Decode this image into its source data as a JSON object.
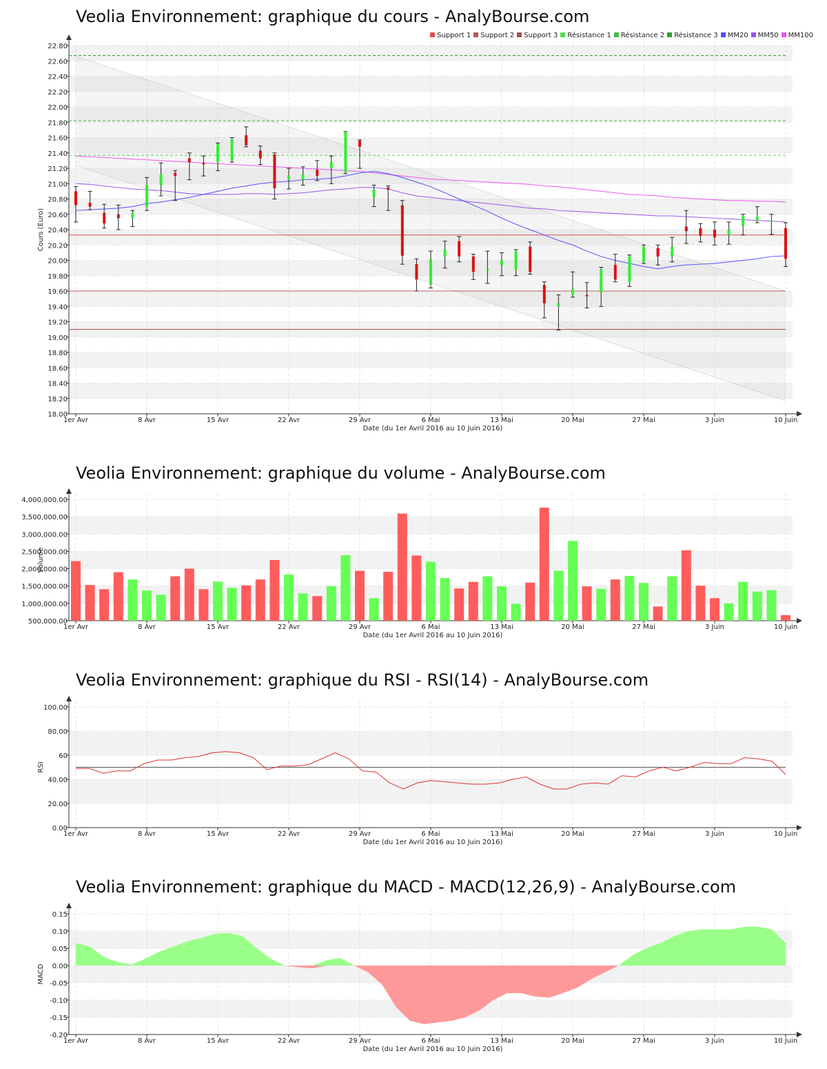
{
  "titles": {
    "price": "Veolia Environnement: graphique du cours - AnalyBourse.com",
    "volume": "Veolia Environnement: graphique du volume - AnalyBourse.com",
    "rsi": "Veolia Environnement: graphique du RSI - RSI(14) - AnalyBourse.com",
    "macd": "Veolia Environnement: graphique du MACD - MACD(12,26,9) - AnalyBourse.com"
  },
  "legend": [
    {
      "label": "Support 1",
      "color": "#e05050"
    },
    {
      "label": "Support 2",
      "color": "#b05a5a"
    },
    {
      "label": "Support 3",
      "color": "#a05050"
    },
    {
      "label": "Résistance 1",
      "color": "#55dd55"
    },
    {
      "label": "Résistance 2",
      "color": "#44bb44"
    },
    {
      "label": "Résistance 3",
      "color": "#339933"
    },
    {
      "label": "MM20",
      "color": "#5050ff"
    },
    {
      "label": "MM50",
      "color": "#9955ee"
    },
    {
      "label": "MM100",
      "color": "#ee55ee"
    }
  ],
  "x_axis": {
    "label": "Date (du 1er Avril 2016 au 10 Juin 2016)",
    "ticks": [
      {
        "index": 0,
        "label": "1er Avr"
      },
      {
        "index": 5,
        "label": "8 Avr"
      },
      {
        "index": 10,
        "label": "15 Avr"
      },
      {
        "index": 15,
        "label": "22 Avr"
      },
      {
        "index": 20,
        "label": "29 Avr"
      },
      {
        "index": 25,
        "label": "6 Mai"
      },
      {
        "index": 30,
        "label": "13 Mai"
      },
      {
        "index": 35,
        "label": "20 Mai"
      },
      {
        "index": 40,
        "label": "27 Mai"
      },
      {
        "index": 45,
        "label": "3 Juin"
      },
      {
        "index": 50,
        "label": "10 Juin"
      }
    ]
  },
  "chart_data": [
    {
      "type": "candlestick",
      "ylabel": "Cours (Euro)",
      "ylim": [
        18.0,
        22.8
      ],
      "yticks": [
        "18.00",
        "18.20",
        "18.40",
        "18.60",
        "18.80",
        "19.00",
        "19.20",
        "19.40",
        "19.60",
        "19.80",
        "20.00",
        "20.20",
        "20.40",
        "20.60",
        "20.80",
        "21.00",
        "21.20",
        "21.40",
        "21.60",
        "21.80",
        "22.00",
        "22.20",
        "22.40",
        "22.60",
        "22.80"
      ],
      "candles": [
        {
          "o": 20.9,
          "c": 20.72,
          "h": 20.96,
          "l": 20.5
        },
        {
          "o": 20.75,
          "c": 20.7,
          "h": 20.9,
          "l": 20.66
        },
        {
          "o": 20.62,
          "c": 20.48,
          "h": 20.73,
          "l": 20.42
        },
        {
          "o": 20.6,
          "c": 20.55,
          "h": 20.72,
          "l": 20.4
        },
        {
          "o": 20.55,
          "c": 20.62,
          "h": 20.65,
          "l": 20.44
        },
        {
          "o": 20.7,
          "c": 20.98,
          "h": 21.08,
          "l": 20.65
        },
        {
          "o": 20.98,
          "c": 21.12,
          "h": 21.27,
          "l": 20.84
        },
        {
          "o": 21.14,
          "c": 21.1,
          "h": 21.17,
          "l": 20.78
        },
        {
          "o": 21.33,
          "c": 21.28,
          "h": 21.4,
          "l": 21.05
        },
        {
          "o": 21.27,
          "c": 21.26,
          "h": 21.36,
          "l": 21.1
        },
        {
          "o": 21.28,
          "c": 21.52,
          "h": 21.53,
          "l": 21.17
        },
        {
          "o": 21.3,
          "c": 21.58,
          "h": 21.6,
          "l": 21.28
        },
        {
          "o": 21.63,
          "c": 21.5,
          "h": 21.74,
          "l": 21.48
        },
        {
          "o": 21.43,
          "c": 21.33,
          "h": 21.49,
          "l": 21.25
        },
        {
          "o": 21.38,
          "c": 20.94,
          "h": 21.4,
          "l": 20.8
        },
        {
          "o": 21.05,
          "c": 21.1,
          "h": 21.2,
          "l": 20.93
        },
        {
          "o": 21.05,
          "c": 21.12,
          "h": 21.22,
          "l": 20.98
        },
        {
          "o": 21.18,
          "c": 21.1,
          "h": 21.3,
          "l": 21.04
        },
        {
          "o": 21.2,
          "c": 21.28,
          "h": 21.36,
          "l": 21.0
        },
        {
          "o": 21.15,
          "c": 21.68,
          "h": 21.68,
          "l": 21.13
        },
        {
          "o": 21.56,
          "c": 21.48,
          "h": 21.57,
          "l": 21.2
        },
        {
          "o": 20.82,
          "c": 20.92,
          "h": 20.98,
          "l": 20.7
        },
        {
          "o": 20.95,
          "c": 20.92,
          "h": 20.97,
          "l": 20.65
        },
        {
          "o": 20.72,
          "c": 20.06,
          "h": 20.78,
          "l": 19.95
        },
        {
          "o": 19.95,
          "c": 19.75,
          "h": 20.02,
          "l": 19.6
        },
        {
          "o": 19.68,
          "c": 20.02,
          "h": 20.12,
          "l": 19.64
        },
        {
          "o": 20.05,
          "c": 20.14,
          "h": 20.25,
          "l": 19.9
        },
        {
          "o": 20.25,
          "c": 20.05,
          "h": 20.31,
          "l": 19.98
        },
        {
          "o": 20.05,
          "c": 19.85,
          "h": 20.08,
          "l": 19.75
        },
        {
          "o": 19.88,
          "c": 19.89,
          "h": 20.12,
          "l": 19.7
        },
        {
          "o": 19.94,
          "c": 20.0,
          "h": 20.1,
          "l": 19.8
        },
        {
          "o": 19.88,
          "c": 20.12,
          "h": 20.14,
          "l": 19.8
        },
        {
          "o": 20.18,
          "c": 19.85,
          "h": 20.24,
          "l": 19.82
        },
        {
          "o": 19.68,
          "c": 19.44,
          "h": 19.72,
          "l": 19.25
        },
        {
          "o": 19.4,
          "c": 19.44,
          "h": 19.55,
          "l": 19.09
        },
        {
          "o": 19.55,
          "c": 19.63,
          "h": 19.85,
          "l": 19.52
        },
        {
          "o": 19.55,
          "c": 19.54,
          "h": 19.71,
          "l": 19.38
        },
        {
          "o": 19.58,
          "c": 19.88,
          "h": 19.91,
          "l": 19.4
        },
        {
          "o": 19.94,
          "c": 19.75,
          "h": 20.08,
          "l": 19.72
        },
        {
          "o": 19.72,
          "c": 20.05,
          "h": 20.07,
          "l": 19.66
        },
        {
          "o": 19.98,
          "c": 20.18,
          "h": 20.2,
          "l": 19.96
        },
        {
          "o": 20.16,
          "c": 20.05,
          "h": 20.2,
          "l": 19.94
        },
        {
          "o": 20.05,
          "c": 20.18,
          "h": 20.3,
          "l": 19.98
        },
        {
          "o": 20.44,
          "c": 20.38,
          "h": 20.65,
          "l": 20.22
        },
        {
          "o": 20.42,
          "c": 20.32,
          "h": 20.48,
          "l": 20.24
        },
        {
          "o": 20.4,
          "c": 20.3,
          "h": 20.5,
          "l": 20.2
        },
        {
          "o": 20.33,
          "c": 20.4,
          "h": 20.5,
          "l": 20.21
        },
        {
          "o": 20.45,
          "c": 20.58,
          "h": 20.6,
          "l": 20.33
        },
        {
          "o": 20.52,
          "c": 20.57,
          "h": 20.7,
          "l": 20.49
        },
        {
          "o": 20.5,
          "c": 20.52,
          "h": 20.6,
          "l": 20.34
        },
        {
          "o": 20.42,
          "c": 20.02,
          "h": 20.49,
          "l": 19.92
        }
      ],
      "mm20": [
        20.65,
        20.66,
        20.67,
        20.68,
        20.7,
        20.74,
        20.76,
        20.79,
        20.82,
        20.86,
        20.9,
        20.94,
        20.97,
        21.0,
        21.02,
        21.03,
        21.05,
        21.06,
        21.07,
        21.1,
        21.14,
        21.16,
        21.13,
        21.08,
        21.02,
        20.96,
        20.88,
        20.8,
        20.72,
        20.64,
        20.55,
        20.47,
        20.4,
        20.33,
        20.26,
        20.2,
        20.12,
        20.05,
        20.0,
        19.96,
        19.92,
        19.89,
        19.92,
        19.94,
        19.95,
        19.96,
        19.98,
        20.0,
        20.02,
        20.05,
        20.06
      ],
      "mm50": [
        21.0,
        20.99,
        20.97,
        20.95,
        20.93,
        20.92,
        20.91,
        20.89,
        20.87,
        20.86,
        20.86,
        20.86,
        20.87,
        20.87,
        20.86,
        20.87,
        20.88,
        20.9,
        20.92,
        20.93,
        20.95,
        20.95,
        20.93,
        20.88,
        20.84,
        20.82,
        20.8,
        20.78,
        20.76,
        20.74,
        20.72,
        20.7,
        20.68,
        20.67,
        20.65,
        20.64,
        20.63,
        20.62,
        20.61,
        20.6,
        20.59,
        20.58,
        20.58,
        20.57,
        20.56,
        20.55,
        20.54,
        20.53,
        20.52,
        20.51,
        20.5
      ],
      "mm100": [
        21.36,
        21.35,
        21.34,
        21.33,
        21.32,
        21.31,
        21.3,
        21.29,
        21.28,
        21.27,
        21.26,
        21.25,
        21.24,
        21.23,
        21.22,
        21.21,
        21.2,
        21.19,
        21.18,
        21.17,
        21.16,
        21.14,
        21.12,
        21.1,
        21.08,
        21.06,
        21.05,
        21.04,
        21.03,
        21.02,
        21.01,
        21.0,
        20.99,
        20.97,
        20.96,
        20.94,
        20.92,
        20.9,
        20.88,
        20.86,
        20.85,
        20.84,
        20.82,
        20.81,
        20.8,
        20.79,
        20.78,
        20.78,
        20.77,
        20.77,
        20.76
      ],
      "supports": [
        20.33,
        19.6,
        19.1
      ],
      "resistances": [
        21.37,
        21.82,
        22.67
      ],
      "channel": {
        "upper": [
          22.66,
          19.6
        ],
        "lower": [
          21.24,
          18.17
        ]
      }
    },
    {
      "type": "bar",
      "ylabel": "Volume",
      "ylim": [
        500000,
        4000000
      ],
      "yticks": [
        "500,000.00",
        "1,000,000.00",
        "1,500,000.00",
        "2,000,000.00",
        "2,500,000.00",
        "3,000,000.00",
        "3,500,000.00",
        "4,000,000.00"
      ],
      "values": [
        2220000,
        1530000,
        1410000,
        1900000,
        1690000,
        1370000,
        1250000,
        1780000,
        2000000,
        1410000,
        1630000,
        1450000,
        1520000,
        1690000,
        2250000,
        1830000,
        1290000,
        1210000,
        1500000,
        2390000,
        1940000,
        1150000,
        1910000,
        3590000,
        2380000,
        2200000,
        1730000,
        1430000,
        1620000,
        1780000,
        1490000,
        990000,
        1600000,
        3760000,
        1940000,
        2800000,
        1490000,
        1420000,
        1690000,
        1790000,
        1590000,
        910000,
        1780000,
        2530000,
        1510000,
        1150000,
        1000000,
        1620000,
        1340000,
        1380000,
        660000
      ]
    },
    {
      "type": "line",
      "ylabel": "RSI",
      "ylim": [
        0,
        100
      ],
      "yticks": [
        "0.00",
        "20.00",
        "40.00",
        "60",
        "80.00",
        "100.00"
      ],
      "reference": 50,
      "values": [
        49,
        49,
        45,
        47,
        47,
        53,
        56,
        56,
        58,
        59,
        62,
        63,
        62,
        58,
        48,
        51,
        51,
        52,
        57,
        62,
        57,
        47,
        46,
        37,
        32,
        37,
        39,
        38,
        37,
        36,
        36,
        37,
        40,
        42,
        36,
        32,
        32,
        36,
        37,
        36,
        43,
        42,
        47,
        50,
        47,
        50,
        54,
        53,
        53,
        58,
        57,
        55,
        44
      ]
    },
    {
      "type": "area",
      "ylabel": "MACD",
      "ylim": [
        -0.2,
        0.15
      ],
      "yticks": [
        "-0.20",
        "-0.15",
        "-0.10",
        "-0.05",
        "0.00",
        "0.05",
        "0.10",
        "0.15"
      ],
      "values": [
        0.065,
        0.055,
        0.025,
        0.01,
        0.003,
        0.02,
        0.04,
        0.055,
        0.07,
        0.08,
        0.092,
        0.095,
        0.085,
        0.05,
        0.02,
        0.0,
        -0.005,
        -0.008,
        0.015,
        0.022,
        0.0,
        -0.02,
        -0.055,
        -0.12,
        -0.16,
        -0.17,
        -0.165,
        -0.16,
        -0.15,
        -0.13,
        -0.1,
        -0.08,
        -0.08,
        -0.09,
        -0.093,
        -0.08,
        -0.065,
        -0.04,
        -0.02,
        0.0,
        0.03,
        0.05,
        0.065,
        0.085,
        0.1,
        0.105,
        0.105,
        0.105,
        0.112,
        0.113,
        0.105,
        0.065
      ]
    }
  ]
}
